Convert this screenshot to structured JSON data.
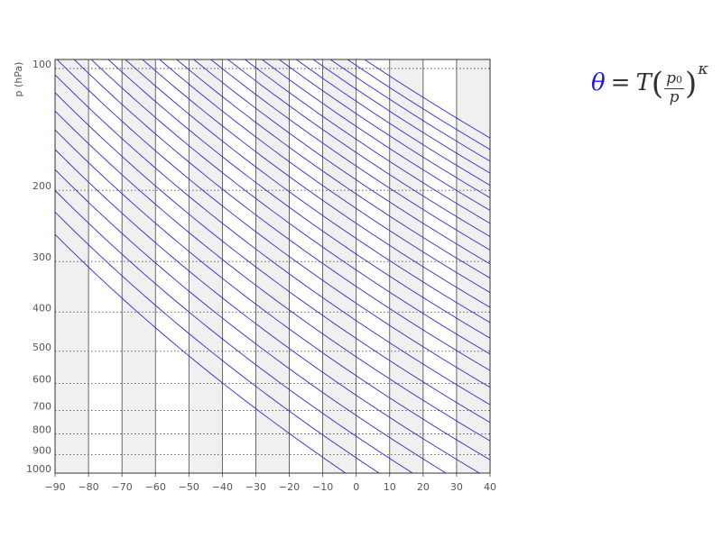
{
  "chart_data": {
    "type": "line",
    "title": "",
    "xlabel": "",
    "ylabel": "p (hPa)",
    "xlim": [
      -90,
      40
    ],
    "ylim": [
      1000,
      95
    ],
    "yscale": "log",
    "x_ticks": [
      -90,
      -80,
      -70,
      -60,
      -50,
      -40,
      -30,
      -20,
      -10,
      0,
      10,
      20,
      30,
      40
    ],
    "x_tick_labels": [
      "−90",
      "−80",
      "−70",
      "−60",
      "−50",
      "−40",
      "−30",
      "−20",
      "−10",
      "0",
      "10",
      "20",
      "30",
      "40"
    ],
    "y_ticks": [
      100,
      200,
      300,
      400,
      500,
      600,
      700,
      800,
      900,
      1000
    ],
    "y_tick_labels": [
      "100",
      "200",
      "300",
      "400",
      "500",
      "600",
      "700",
      "800",
      "900",
      "1000"
    ],
    "isobar_gridlines": "dotted",
    "temperature_band_shading": "alternating 10 °C bands, light gray",
    "series_color": "#2b2bd6",
    "isentropes_theta_K": [
      270,
      280,
      290,
      300,
      310,
      320,
      330,
      340,
      350,
      360,
      370,
      380,
      390,
      400,
      410,
      420,
      430,
      440,
      450,
      460,
      470,
      480,
      490,
      500,
      510,
      520,
      530,
      540
    ],
    "formula": {
      "lhs": "θ",
      "equals": "=",
      "T": "T",
      "open_paren": "(",
      "numerator": "p",
      "numerator_sub": "0",
      "denominator": "p",
      "close_paren": ")",
      "exponent": "κ"
    }
  }
}
